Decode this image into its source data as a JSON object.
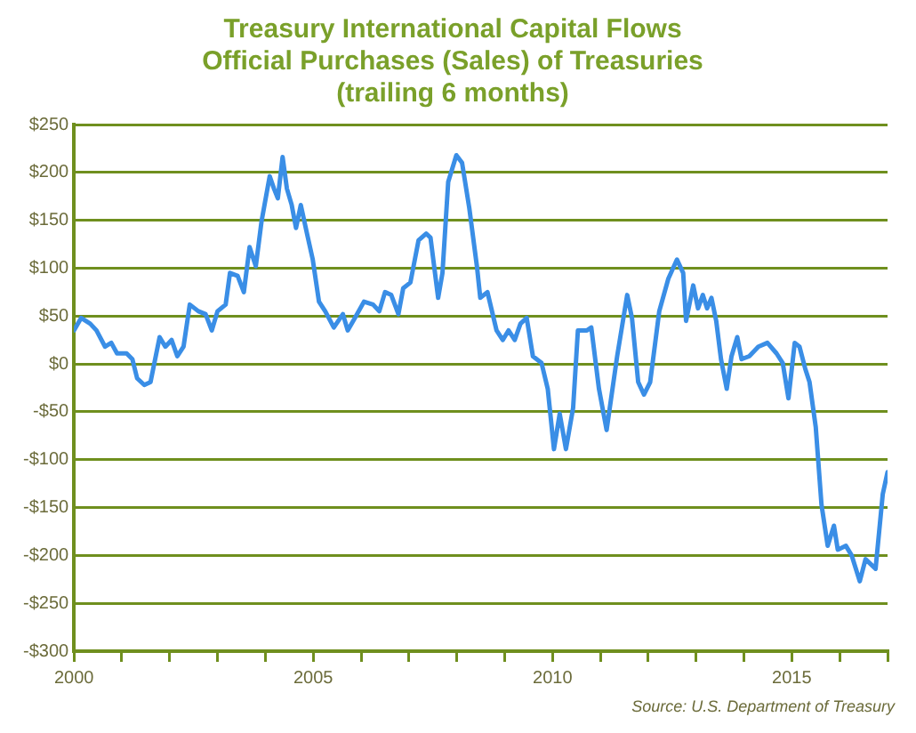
{
  "chart_data": {
    "type": "line",
    "title": "Treasury International Capital Flows\nOfficial Purchases (Sales) of Treasuries\n(trailing 6 months)",
    "annotations": [
      "Source: U.S. Department of Treasury"
    ],
    "xlim": [
      2000,
      2017
    ],
    "xticks": [
      2000,
      {
        "value": 2001,
        "label": null
      },
      {
        "value": 2002,
        "label": null
      },
      {
        "value": 2003,
        "label": null
      },
      {
        "value": 2004,
        "label": null
      },
      2005,
      {
        "value": 2006,
        "label": null
      },
      {
        "value": 2007,
        "label": null
      },
      {
        "value": 2008,
        "label": null
      },
      {
        "value": 2009,
        "label": null
      },
      2010,
      {
        "value": 2011,
        "label": null
      },
      {
        "value": 2012,
        "label": null
      },
      {
        "value": 2013,
        "label": null
      },
      {
        "value": 2014,
        "label": null
      },
      2015,
      {
        "value": 2016,
        "label": null
      },
      {
        "value": 2017,
        "label": null
      }
    ],
    "ylim": [
      -300,
      250
    ],
    "yticks": [
      {
        "value": -300,
        "label": "-$300"
      },
      {
        "value": -250,
        "label": "-$250"
      },
      {
        "value": -200,
        "label": "-$200"
      },
      {
        "value": -150,
        "label": "-$150"
      },
      {
        "value": -100,
        "label": "-$100"
      },
      {
        "value": -50,
        "label": "-$50"
      },
      {
        "value": 0,
        "label": "$0"
      },
      {
        "value": 50,
        "label": "$50"
      },
      {
        "value": 100,
        "label": "$100"
      },
      {
        "value": 150,
        "label": "$150"
      },
      {
        "value": 200,
        "label": "$200"
      },
      {
        "value": 250,
        "label": "$250"
      }
    ],
    "grid": "y",
    "legend": false,
    "marker": "none",
    "line_style": "solid",
    "series": [
      {
        "color": "#3a8ee6",
        "x": [
          2000,
          2000.15,
          2000.34,
          2000.47,
          2000.65,
          2000.78,
          2000.9,
          2001.1,
          2001.22,
          2001.32,
          2001.47,
          2001.6,
          2001.79,
          2001.91,
          2002.04,
          2002.16,
          2002.29,
          2002.42,
          2002.6,
          2002.75,
          2002.88,
          2003,
          2003.17,
          2003.26,
          2003.42,
          2003.55,
          2003.67,
          2003.8,
          2003.92,
          2004.09,
          2004.18,
          2004.26,
          2004.36,
          2004.45,
          2004.55,
          2004.64,
          2004.74,
          2004.87,
          2004.99,
          2005.12,
          2005.25,
          2005.43,
          2005.62,
          2005.72,
          2005.87,
          2006.06,
          2006.25,
          2006.38,
          2006.5,
          2006.63,
          2006.78,
          2006.88,
          2007.03,
          2007.2,
          2007.36,
          2007.45,
          2007.61,
          2007.7,
          2007.82,
          2007.99,
          2008.11,
          2008.26,
          2008.42,
          2008.49,
          2008.64,
          2008.83,
          2008.96,
          2009.08,
          2009.21,
          2009.33,
          2009.46,
          2009.59,
          2009.77,
          2009.9,
          2010.03,
          2010.15,
          2010.28,
          2010.43,
          2010.53,
          2010.72,
          2010.81,
          2010.97,
          2011.13,
          2011.35,
          2011.56,
          2011.66,
          2011.79,
          2011.91,
          2012.04,
          2012.23,
          2012.42,
          2012.6,
          2012.73,
          2012.79,
          2012.94,
          2013.04,
          2013.14,
          2013.23,
          2013.32,
          2013.42,
          2013.52,
          2013.64,
          2013.74,
          2013.86,
          2013.95,
          2014.11,
          2014.3,
          2014.49,
          2014.68,
          2014.81,
          2014.93,
          2015.06,
          2015.16,
          2015.28,
          2015.37,
          2015.5,
          2015.62,
          2015.75,
          2015.88,
          2015.96,
          2016.13,
          2016.25,
          2016.42,
          2016.54,
          2016.75,
          2016.9,
          2017
        ],
        "values": [
          35,
          48,
          42,
          35,
          18,
          22,
          11,
          11,
          5,
          -15,
          -22,
          -19,
          28,
          18,
          25,
          8,
          18,
          62,
          55,
          52,
          35,
          55,
          62,
          95,
          92,
          75,
          122,
          102,
          149,
          196,
          183,
          173,
          216,
          183,
          166,
          142,
          166,
          136,
          109,
          65,
          55,
          38,
          52,
          35,
          48,
          65,
          62,
          55,
          75,
          72,
          52,
          79,
          85,
          129,
          136,
          132,
          69,
          95,
          190,
          218,
          210,
          163,
          102,
          69,
          75,
          35,
          25,
          35,
          25,
          42,
          48,
          8,
          1,
          -26,
          -89,
          -52,
          -89,
          -46,
          35,
          35,
          38,
          -26,
          -69,
          8,
          72,
          48,
          -19,
          -32,
          -19,
          55,
          89,
          109,
          95,
          45,
          82,
          58,
          72,
          58,
          69,
          45,
          5,
          -26,
          8,
          28,
          5,
          8,
          18,
          22,
          11,
          1,
          -36,
          22,
          18,
          -5,
          -19,
          -66,
          -147,
          -190,
          -169,
          -194,
          -190,
          -200,
          -227,
          -204,
          -214,
          -136,
          -113
        ]
      }
    ]
  }
}
